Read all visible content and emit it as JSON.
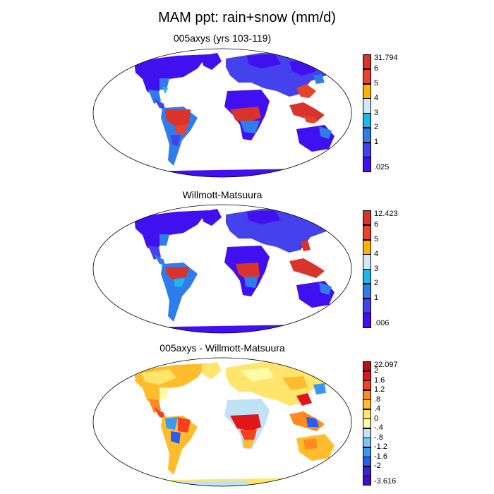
{
  "title": "MAM ppt: rain+snow (mm/d)",
  "panels": [
    {
      "id": "model",
      "title": "005axys (yrs 103-119)",
      "colorbar": {
        "labels": [
          "31.794",
          "6",
          "5",
          "4",
          "3",
          "2",
          "1",
          ".025"
        ],
        "colors": [
          "#d9332b",
          "#e8432a",
          "#ffb300",
          "#cfe9f5",
          "#22b5ea",
          "#2f7ded",
          "#4442ec",
          "#4010f0"
        ]
      }
    },
    {
      "id": "obs",
      "title": "Willmott-Matsuura",
      "colorbar": {
        "labels": [
          "12.423",
          "6",
          "5",
          "4",
          "3",
          "2",
          "1",
          ".006"
        ],
        "colors": [
          "#d9332b",
          "#e8432a",
          "#ffb300",
          "#cfe9f5",
          "#22b5ea",
          "#2f7ded",
          "#4442ec",
          "#4010f0"
        ]
      }
    },
    {
      "id": "diff",
      "title": "005axys - Willmott-Matsuura",
      "colorbar": {
        "labels": [
          "22.097",
          "2",
          "1.6",
          "1.2",
          ".8",
          ".4",
          "0",
          "-.4",
          "-.8",
          "-1.2",
          "-1.6",
          "-2",
          "-3.616"
        ],
        "colors": [
          "#b3141c",
          "#e0161b",
          "#f7401c",
          "#ff8a1f",
          "#ffbd2e",
          "#ffe56b",
          "#fffaa8",
          "#bfe2f5",
          "#7ec5f4",
          "#3b9af0",
          "#2b5cf0",
          "#3a22d9",
          "#3a10c0"
        ]
      }
    }
  ],
  "colors": {
    "ocean": "#ffffff",
    "outline": "#000000"
  }
}
